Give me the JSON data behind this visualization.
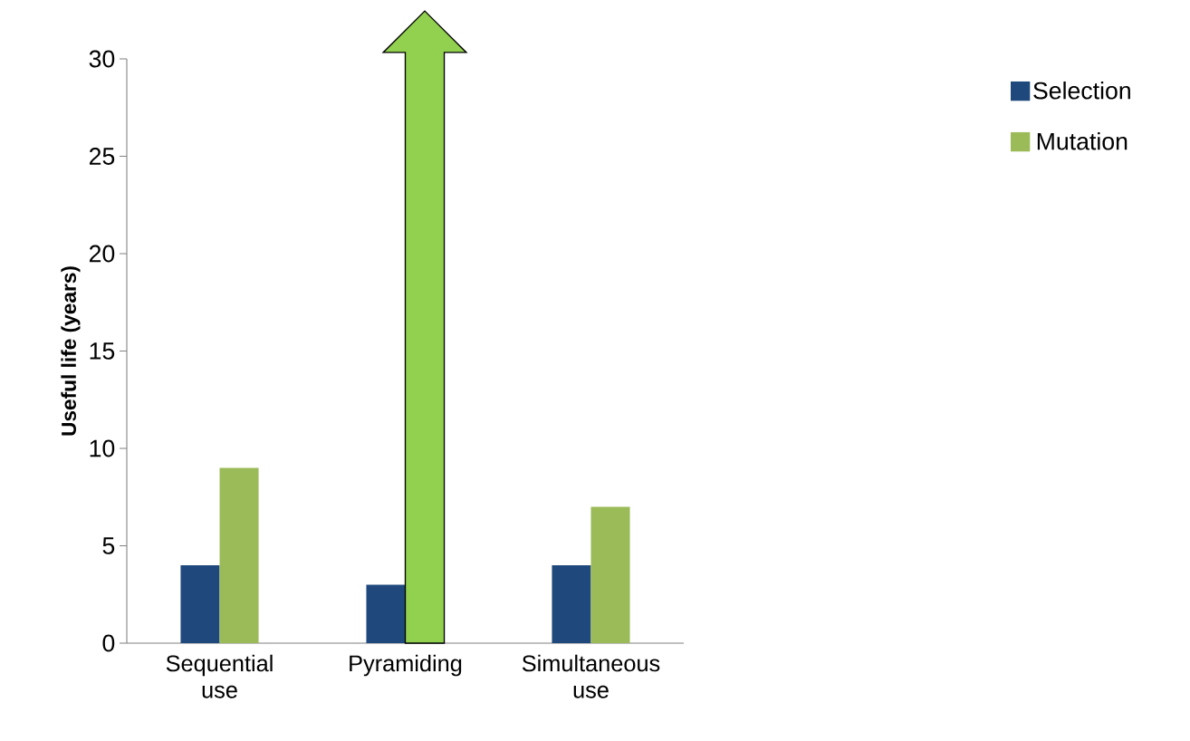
{
  "chart_data": {
    "type": "bar",
    "ylabel": "Useful life (years)",
    "categories": [
      "Sequential use",
      "Pyramiding",
      "Simultaneous use"
    ],
    "series": [
      {
        "name": "Selection",
        "color": "#1f497d",
        "values": [
          4,
          3,
          4
        ]
      },
      {
        "name": "Mutation",
        "color": "#9bbb59",
        "values": [
          9,
          null,
          7
        ]
      }
    ],
    "ylim": [
      0,
      30
    ],
    "yticks": [
      0,
      5,
      10,
      15,
      20,
      25,
      30
    ],
    "legend": "top right"
  }
}
